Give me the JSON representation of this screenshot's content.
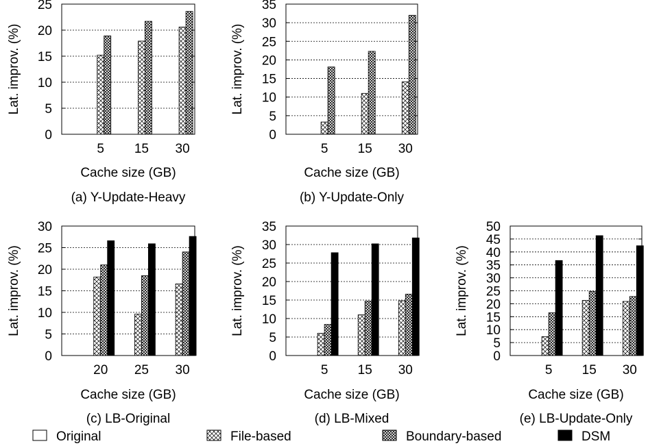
{
  "chart_data": [
    {
      "type": "bar",
      "caption": "(a) Y-Update-Heavy",
      "xlabel": "Cache size (GB)",
      "ylabel": "Lat. improv. (%)",
      "ylim": [
        0,
        25
      ],
      "yticks": [
        0,
        5,
        10,
        15,
        20,
        25
      ],
      "categories": [
        "5",
        "15",
        "30"
      ],
      "series": [
        {
          "name": "Original",
          "values": [
            0,
            0,
            0
          ]
        },
        {
          "name": "File-based",
          "values": [
            15.2,
            17.9,
            20.6
          ]
        },
        {
          "name": "Boundary-based",
          "values": [
            18.9,
            21.7,
            23.6
          ]
        }
      ],
      "grid": "horizontal-dashed"
    },
    {
      "type": "bar",
      "caption": "(b) Y-Update-Only",
      "xlabel": "Cache size (GB)",
      "ylabel": "Lat. improv. (%)",
      "ylim": [
        0,
        35
      ],
      "yticks": [
        0,
        5,
        10,
        15,
        20,
        25,
        30,
        35
      ],
      "categories": [
        "5",
        "15",
        "30"
      ],
      "series": [
        {
          "name": "Original",
          "values": [
            0,
            0,
            0
          ]
        },
        {
          "name": "File-based",
          "values": [
            3.3,
            11.0,
            14.1
          ]
        },
        {
          "name": "Boundary-based",
          "values": [
            18.1,
            22.3,
            32.0
          ]
        }
      ],
      "grid": "horizontal-dashed"
    },
    {
      "type": "bar",
      "caption": "(c) LB-Original",
      "xlabel": "Cache size (GB)",
      "ylabel": "Lat. improv. (%)",
      "ylim": [
        0,
        30
      ],
      "yticks": [
        0,
        5,
        10,
        15,
        20,
        25,
        30
      ],
      "categories": [
        "20",
        "25",
        "30"
      ],
      "series": [
        {
          "name": "Original",
          "values": [
            0,
            0,
            0
          ]
        },
        {
          "name": "File-based",
          "values": [
            18.2,
            9.6,
            16.6
          ]
        },
        {
          "name": "Boundary-based",
          "values": [
            21.0,
            18.5,
            24.0
          ]
        },
        {
          "name": "DSM",
          "values": [
            26.6,
            25.9,
            27.6
          ]
        }
      ],
      "grid": "horizontal-dashed"
    },
    {
      "type": "bar",
      "caption": "(d) LB-Mixed",
      "xlabel": "Cache size (GB)",
      "ylabel": "Lat. improv. (%)",
      "ylim": [
        0,
        35
      ],
      "yticks": [
        0,
        5,
        10,
        15,
        20,
        25,
        30,
        35
      ],
      "categories": [
        "5",
        "15",
        "30"
      ],
      "series": [
        {
          "name": "Original",
          "values": [
            0,
            0,
            0
          ]
        },
        {
          "name": "File-based",
          "values": [
            6.0,
            11.0,
            14.8
          ]
        },
        {
          "name": "Boundary-based",
          "values": [
            8.4,
            14.7,
            16.6
          ]
        },
        {
          "name": "DSM",
          "values": [
            27.8,
            30.2,
            31.8
          ]
        }
      ],
      "grid": "horizontal-dashed"
    },
    {
      "type": "bar",
      "caption": "(e) LB-Update-Only",
      "xlabel": "Cache size (GB)",
      "ylabel": "Lat. improv. (%)",
      "ylim": [
        0,
        50
      ],
      "yticks": [
        0,
        5,
        10,
        15,
        20,
        25,
        30,
        35,
        40,
        45,
        50
      ],
      "categories": [
        "5",
        "15",
        "30"
      ],
      "series": [
        {
          "name": "Original",
          "values": [
            0,
            0,
            0
          ]
        },
        {
          "name": "File-based",
          "values": [
            7.3,
            21.3,
            20.9
          ]
        },
        {
          "name": "Boundary-based",
          "values": [
            16.5,
            24.8,
            22.8
          ]
        },
        {
          "name": "DSM",
          "values": [
            36.7,
            46.3,
            42.4
          ]
        }
      ],
      "grid": "horizontal-dashed"
    }
  ],
  "legend": {
    "placement": "bottom",
    "items": [
      {
        "name": "Original",
        "pattern": "empty"
      },
      {
        "name": "File-based",
        "pattern": "cross-hatch"
      },
      {
        "name": "Boundary-based",
        "pattern": "dense-cross-hatch"
      },
      {
        "name": "DSM",
        "pattern": "solid"
      }
    ]
  },
  "colors": {
    "ink": "#000000",
    "background": "#ffffff"
  }
}
